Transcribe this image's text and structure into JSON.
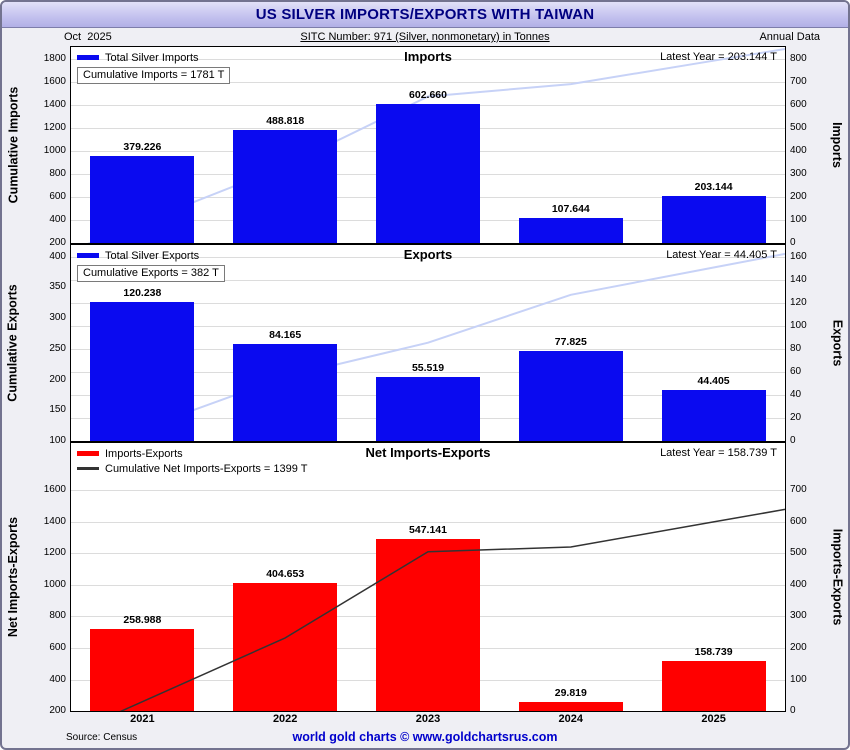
{
  "window": {
    "title": "US SILVER IMPORTS/EXPORTS WITH TAIWAN"
  },
  "header": {
    "date": "Oct  2025",
    "sitc": "SITC Number: 971 (Silver, nonmonetary) in Tonnes",
    "annual": "Annual Data"
  },
  "footer": {
    "source": "Source: Census",
    "brand": "world gold charts © www.goldchartsrus.com"
  },
  "categories": [
    "2021",
    "2022",
    "2023",
    "2024",
    "2025"
  ],
  "chart_data": [
    {
      "type": "bar",
      "title": "Imports",
      "categories": [
        "2021",
        "2022",
        "2023",
        "2024",
        "2025"
      ],
      "series": [
        {
          "name": "Total Silver Imports",
          "type": "bar",
          "axis": "right",
          "color": "#0a0af0",
          "values": [
            379.226,
            488.818,
            602.66,
            107.644,
            203.144
          ],
          "labels": [
            "379.226",
            "488.818",
            "602.660",
            "107.644",
            "203.144"
          ]
        },
        {
          "name": "Cumulative Imports",
          "type": "line",
          "axis": "left",
          "color": "#c7d2f7",
          "values": [
            379.226,
            868.044,
            1470.704,
            1578.348,
            1781.492
          ]
        }
      ],
      "legend_note": "Cumulative Imports = 1781 T",
      "latest": "Latest Year = 203.144 T",
      "left_axis": {
        "label": "Cumulative Imports",
        "min": 200,
        "max": 1900,
        "ticks": [
          200,
          400,
          600,
          800,
          1000,
          1200,
          1400,
          1600,
          1800
        ]
      },
      "right_axis": {
        "label": "Imports",
        "min": 0,
        "max": 850,
        "ticks": [
          0,
          100,
          200,
          300,
          400,
          500,
          600,
          700,
          800
        ]
      },
      "line_on_top": false
    },
    {
      "type": "bar",
      "title": "Exports",
      "categories": [
        "2021",
        "2022",
        "2023",
        "2024",
        "2025"
      ],
      "series": [
        {
          "name": "Total Silver Exports",
          "type": "bar",
          "axis": "right",
          "color": "#0a0af0",
          "values": [
            120.238,
            84.165,
            55.519,
            77.825,
            44.405
          ],
          "labels": [
            "120.238",
            "84.165",
            "55.519",
            "77.825",
            "44.405"
          ]
        },
        {
          "name": "Cumulative Exports",
          "type": "line",
          "axis": "left",
          "color": "#c7d2f7",
          "values": [
            120.238,
            204.403,
            259.922,
            337.747,
            382.152
          ]
        }
      ],
      "legend_note": "Cumulative Exports = 382 T",
      "latest": "Latest Year = 44.405 T",
      "left_axis": {
        "label": "Cumulative Exports",
        "min": 100,
        "max": 418.75,
        "ticks": [
          100,
          150,
          200,
          250,
          300,
          350,
          400
        ]
      },
      "right_axis": {
        "label": "Exports",
        "min": 0,
        "max": 170,
        "ticks": [
          0,
          20,
          40,
          60,
          80,
          100,
          120,
          140,
          160
        ]
      },
      "line_on_top": false
    },
    {
      "type": "bar",
      "title": "Net Imports-Exports",
      "categories": [
        "2021",
        "2022",
        "2023",
        "2024",
        "2025"
      ],
      "series": [
        {
          "name": "Imports-Exports",
          "type": "bar",
          "axis": "right",
          "color": "#ff0000",
          "values": [
            258.988,
            404.653,
            547.141,
            29.819,
            158.739
          ],
          "labels": [
            "258.988",
            "404.653",
            "547.141",
            "29.819",
            "158.739"
          ]
        },
        {
          "name": "Cumulative Net Imports-Exports",
          "type": "line",
          "axis": "left",
          "color": "#333333",
          "values": [
            258.988,
            663.641,
            1210.782,
            1240.601,
            1399.34
          ]
        }
      ],
      "legend_note": "Cumulative Net Imports-Exports = 1399 T",
      "latest": "Latest Year = 158.739 T",
      "left_axis": {
        "label": "Net Imports-Exports",
        "min": 200,
        "max": 1900,
        "ticks": [
          200,
          400,
          600,
          800,
          1000,
          1200,
          1400,
          1600
        ]
      },
      "right_axis": {
        "label": "Imports-Exports",
        "min": 0,
        "max": 850,
        "ticks": [
          0,
          100,
          200,
          300,
          400,
          500,
          600,
          700
        ]
      },
      "line_on_top": true
    }
  ]
}
